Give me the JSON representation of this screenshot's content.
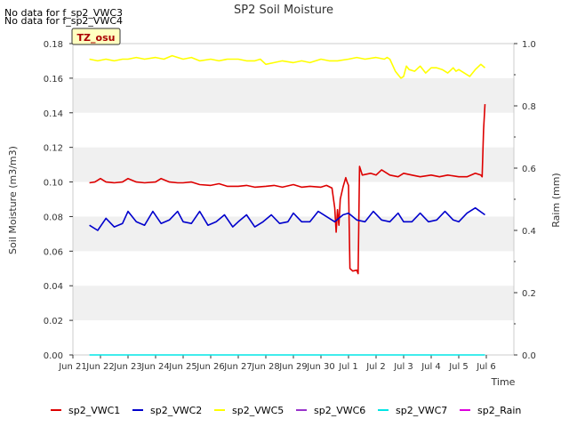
{
  "messages": [
    "No data for f_sp2_VWC3",
    "No data for f_sp2_VWC4"
  ],
  "chart_data": {
    "type": "line",
    "title": "SP2 Soil Moisture",
    "xlabel": "Time",
    "ylabel": "Soil Moisture (m3/m3)",
    "y2label": "Raim (mm)",
    "badge": "TZ_osu",
    "xlim": [
      0,
      16
    ],
    "ylim": [
      0,
      0.18
    ],
    "y2lim": [
      0,
      1.0
    ],
    "x_ticks": [
      {
        "x": 0,
        "label": "Jun 21"
      },
      {
        "x": 1,
        "label": "Jun 22"
      },
      {
        "x": 2,
        "label": "Jun 23"
      },
      {
        "x": 3,
        "label": "Jun 24"
      },
      {
        "x": 4,
        "label": "Jun 25"
      },
      {
        "x": 5,
        "label": "Jun 26"
      },
      {
        "x": 6,
        "label": "Jun 27"
      },
      {
        "x": 7,
        "label": "Jun 28"
      },
      {
        "x": 8,
        "label": "Jun 29"
      },
      {
        "x": 9,
        "label": "Jun 30"
      },
      {
        "x": 10,
        "label": "Jul 1"
      },
      {
        "x": 11,
        "label": "Jul 2"
      },
      {
        "x": 12,
        "label": "Jul 3"
      },
      {
        "x": 13,
        "label": "Jul 4"
      },
      {
        "x": 14,
        "label": "Jul 5"
      },
      {
        "x": 15,
        "label": "Jul 6"
      }
    ],
    "y_ticks": [
      "0.00",
      "0.02",
      "0.04",
      "0.06",
      "0.08",
      "0.10",
      "0.12",
      "0.14",
      "0.16",
      "0.18"
    ],
    "y2_ticks": [
      "0.0",
      "0.2",
      "0.4",
      "0.6",
      "0.8",
      "1.0"
    ],
    "grid": "horizontal bands",
    "legend_position": "bottom",
    "series": [
      {
        "name": "sp2_VWC1",
        "color": "#dd0000",
        "x": [
          0.6,
          0.8,
          1.0,
          1.2,
          1.5,
          1.8,
          2.0,
          2.3,
          2.6,
          3.0,
          3.2,
          3.5,
          3.8,
          4.0,
          4.3,
          4.6,
          5.0,
          5.3,
          5.6,
          6.0,
          6.3,
          6.6,
          7.0,
          7.3,
          7.6,
          8.0,
          8.3,
          8.6,
          9.0,
          9.2,
          9.4,
          9.5,
          9.55,
          9.6,
          9.65,
          9.7,
          9.8,
          9.9,
          9.95,
          10.0,
          10.05,
          10.15,
          10.3,
          10.35,
          10.4,
          10.5,
          10.8,
          11.0,
          11.2,
          11.5,
          11.8,
          12.0,
          12.3,
          12.6,
          13.0,
          13.3,
          13.6,
          14.0,
          14.3,
          14.6,
          14.8,
          14.85,
          14.9,
          14.95
        ],
        "y": [
          0.0995,
          0.1,
          0.102,
          0.1,
          0.0995,
          0.1,
          0.102,
          0.1,
          0.0995,
          0.1,
          0.102,
          0.1,
          0.0995,
          0.0995,
          0.1,
          0.0985,
          0.098,
          0.099,
          0.0975,
          0.0975,
          0.098,
          0.097,
          0.0975,
          0.098,
          0.097,
          0.0985,
          0.097,
          0.0975,
          0.097,
          0.098,
          0.0965,
          0.085,
          0.071,
          0.084,
          0.075,
          0.09,
          0.097,
          0.1025,
          0.1,
          0.098,
          0.05,
          0.0485,
          0.049,
          0.047,
          0.109,
          0.104,
          0.105,
          0.104,
          0.107,
          0.104,
          0.103,
          0.105,
          0.104,
          0.103,
          0.104,
          0.103,
          0.104,
          0.103,
          0.103,
          0.105,
          0.104,
          0.103,
          0.13,
          0.145
        ]
      },
      {
        "name": "sp2_VWC2",
        "color": "#0000cc",
        "x": [
          0.6,
          0.9,
          1.2,
          1.5,
          1.8,
          2.0,
          2.3,
          2.6,
          2.9,
          3.2,
          3.5,
          3.8,
          4.0,
          4.3,
          4.6,
          4.9,
          5.2,
          5.5,
          5.8,
          6.0,
          6.3,
          6.6,
          6.9,
          7.2,
          7.5,
          7.8,
          8.0,
          8.3,
          8.6,
          8.9,
          9.2,
          9.5,
          9.8,
          10.0,
          10.3,
          10.6,
          10.9,
          11.2,
          11.5,
          11.8,
          12.0,
          12.3,
          12.6,
          12.9,
          13.2,
          13.5,
          13.8,
          14.0,
          14.3,
          14.6,
          14.95
        ],
        "y": [
          0.075,
          0.072,
          0.079,
          0.074,
          0.076,
          0.083,
          0.077,
          0.075,
          0.083,
          0.076,
          0.078,
          0.083,
          0.077,
          0.076,
          0.083,
          0.075,
          0.077,
          0.081,
          0.074,
          0.077,
          0.081,
          0.074,
          0.077,
          0.081,
          0.076,
          0.077,
          0.082,
          0.077,
          0.077,
          0.083,
          0.08,
          0.077,
          0.081,
          0.082,
          0.078,
          0.077,
          0.083,
          0.078,
          0.077,
          0.082,
          0.077,
          0.077,
          0.082,
          0.077,
          0.078,
          0.083,
          0.078,
          0.077,
          0.082,
          0.085,
          0.081
        ]
      },
      {
        "name": "sp2_VWC5",
        "color": "#ffff00",
        "x": [
          0.6,
          0.9,
          1.2,
          1.5,
          1.8,
          2.0,
          2.3,
          2.6,
          3.0,
          3.3,
          3.6,
          4.0,
          4.3,
          4.6,
          5.0,
          5.3,
          5.6,
          6.0,
          6.3,
          6.6,
          6.8,
          7.0,
          7.3,
          7.6,
          8.0,
          8.3,
          8.6,
          9.0,
          9.3,
          9.6,
          10.0,
          10.3,
          10.6,
          11.0,
          11.3,
          11.4,
          11.5,
          11.7,
          11.9,
          12.0,
          12.1,
          12.2,
          12.4,
          12.6,
          12.8,
          13.0,
          13.2,
          13.4,
          13.6,
          13.8,
          13.9,
          14.0,
          14.2,
          14.4,
          14.6,
          14.8,
          14.95
        ],
        "y": [
          0.171,
          0.17,
          0.171,
          0.17,
          0.171,
          0.171,
          0.172,
          0.171,
          0.172,
          0.171,
          0.173,
          0.171,
          0.172,
          0.17,
          0.171,
          0.17,
          0.171,
          0.171,
          0.17,
          0.17,
          0.171,
          0.168,
          0.169,
          0.17,
          0.169,
          0.17,
          0.169,
          0.171,
          0.17,
          0.17,
          0.171,
          0.172,
          0.171,
          0.172,
          0.171,
          0.172,
          0.171,
          0.164,
          0.16,
          0.161,
          0.167,
          0.165,
          0.164,
          0.167,
          0.163,
          0.166,
          0.166,
          0.165,
          0.163,
          0.166,
          0.164,
          0.165,
          0.163,
          0.161,
          0.165,
          0.168,
          0.166
        ]
      },
      {
        "name": "sp2_VWC6",
        "color": "#9933cc",
        "x": [],
        "y": []
      },
      {
        "name": "sp2_VWC7",
        "color": "#00e5e5",
        "x": [
          0.6,
          14.95
        ],
        "y": [
          0.0,
          0.0
        ]
      },
      {
        "name": "sp2_Rain",
        "color": "#dd00dd",
        "x": [],
        "y": []
      }
    ]
  }
}
